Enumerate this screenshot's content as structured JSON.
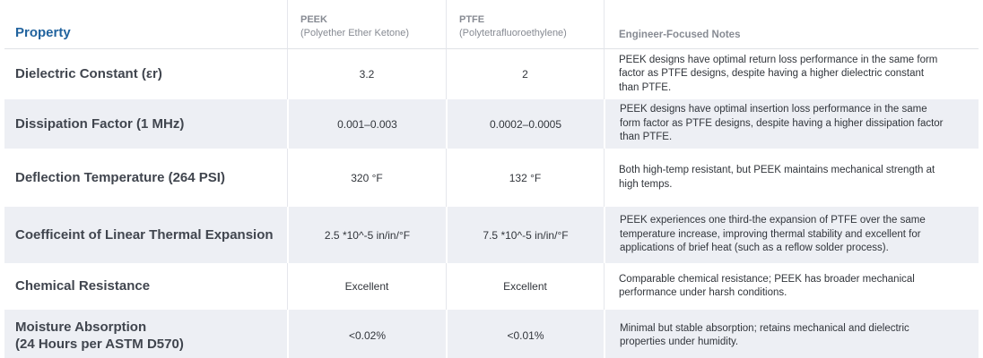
{
  "colors": {
    "accent_blue": "#21639e",
    "stripe_bg": "#edeff4",
    "header_gray": "#878b93",
    "body_text": "#31353b"
  },
  "table": {
    "columns": [
      {
        "key": "property",
        "label": "Property"
      },
      {
        "key": "peek",
        "label": "PEEK",
        "sublabel": "(Polyether Ether Ketone)"
      },
      {
        "key": "ptfe",
        "label": "PTFE",
        "sublabel": "(Polytetrafluoroethylene)"
      },
      {
        "key": "notes",
        "label": "Engineer-Focused Notes"
      }
    ],
    "rows": [
      {
        "property": "Dielectric Constant (εr)",
        "peek": "3.2",
        "ptfe": "2",
        "notes": "PEEK designs have optimal return loss performance in the same form factor as PTFE designs, despite having a higher dielectric constant than PTFE."
      },
      {
        "property": "Dissipation Factor (1 MHz)",
        "peek": "0.001–0.003",
        "ptfe": "0.0002–0.0005",
        "notes": "PEEK designs have optimal insertion loss performance in the same form factor as PTFE designs, despite having a higher dissipation factor than PTFE."
      },
      {
        "property": "Deflection Temperature (264 PSI)",
        "peek": "320 °F",
        "ptfe": "132 °F",
        "notes": "Both high-temp resistant, but PEEK maintains mechanical strength at high temps."
      },
      {
        "property": "Coefficeint of Linear Thermal Expansion",
        "peek": "2.5 *10^-5 in/in/°F",
        "ptfe": "7.5 *10^-5 in/in/°F",
        "notes": "PEEK experiences one third-the expansion of PTFE over the same temperature increase, improving thermal stability and excellent for applications of brief heat (such as a reflow solder process)."
      },
      {
        "property": "Chemical Resistance",
        "peek": "Excellent",
        "ptfe": "Excellent",
        "notes": "Comparable chemical resistance; PEEK has broader mechanical performance under harsh conditions."
      },
      {
        "property": "Moisture Absorption\n(24 Hours per ASTM D570)",
        "peek": "<0.02%",
        "ptfe": "<0.01%",
        "notes": "Minimal but stable absorption; retains mechanical and dielectric properties under humidity."
      }
    ]
  },
  "chart_data": {
    "type": "table",
    "title": "PEEK vs PTFE material property comparison",
    "columns": [
      "Property",
      "PEEK (Polyether Ether Ketone)",
      "PTFE (Polytetrafluoroethylene)",
      "Engineer-Focused Notes"
    ],
    "rows": [
      [
        "Dielectric Constant (εr)",
        "3.2",
        "2",
        "PEEK designs have optimal return loss performance in the same form factor as PTFE designs, despite having a higher dielectric constant than PTFE."
      ],
      [
        "Dissipation Factor (1 MHz)",
        "0.001–0.003",
        "0.0002–0.0005",
        "PEEK designs have optimal insertion loss performance in the same form factor as PTFE designs, despite having a higher dissipation factor than PTFE."
      ],
      [
        "Deflection Temperature (264 PSI)",
        "320 °F",
        "132 °F",
        "Both high-temp resistant, but PEEK maintains mechanical strength at high temps."
      ],
      [
        "Coefficeint of Linear Thermal Expansion",
        "2.5 *10^-5 in/in/°F",
        "7.5 *10^-5 in/in/°F",
        "PEEK experiences one third-the expansion of PTFE over the same temperature increase, improving thermal stability and excellent for applications of brief heat (such as a reflow solder process)."
      ],
      [
        "Chemical Resistance",
        "Excellent",
        "Excellent",
        "Comparable chemical resistance; PEEK has broader mechanical performance under harsh conditions."
      ],
      [
        "Moisture Absorption (24 Hours per ASTM D570)",
        "<0.02%",
        "<0.01%",
        "Minimal but stable absorption; retains mechanical and dielectric properties under humidity."
      ]
    ],
    "layout": {
      "striped_rows": "even",
      "stripe_color": "#edeff4",
      "header_accent": "#21639e"
    }
  }
}
